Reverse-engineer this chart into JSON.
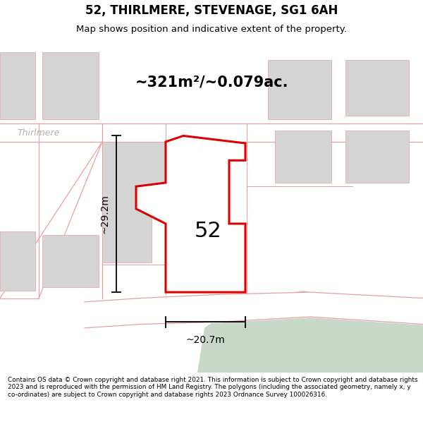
{
  "title": "52, THIRLMERE, STEVENAGE, SG1 6AH",
  "subtitle": "Map shows position and indicative extent of the property.",
  "area_text": "~321m²/~0.079ac.",
  "label_number": "52",
  "dim_height": "~29.2m",
  "dim_width": "~20.7m",
  "street_label": "Thirlmere",
  "footer_text": "Contains OS data © Crown copyright and database right 2021. This information is subject to Crown copyright and database rights 2023 and is reproduced with the permission of HM Land Registry. The polygons (including the associated geometry, namely x, y co-ordinates) are subject to Crown copyright and database rights 2023 Ordnance Survey 100026316.",
  "map_bg": "#f2f2f2",
  "plot_fill": "#eeeeee",
  "plot_edge": "#dd0000",
  "footer_bg": "#e8ede9",
  "road_color": "#e8a0a0",
  "building_fill": "#d4d4d4",
  "green_area": "#c8d8c8",
  "title_fontsize": 12,
  "subtitle_fontsize": 9.5,
  "area_fontsize": 15
}
